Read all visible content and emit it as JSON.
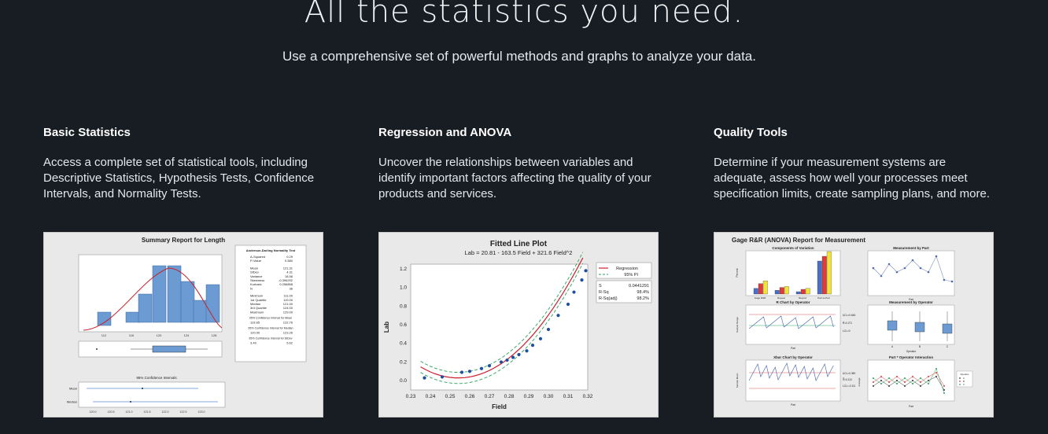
{
  "hero": {
    "title": "All the statistics you need.",
    "subtitle": "Use a comprehensive set of powerful methods and graphs to analyze your data."
  },
  "features": [
    {
      "title": "Basic Statistics",
      "description": "Access a complete set of statistical tools, including Descriptive Statistics, Hypothesis Tests, Confidence Intervals, and Normality Tests."
    },
    {
      "title": "Regression and ANOVA",
      "description": "Uncover the relationships between variables and identify important factors affecting the quality of your products and services."
    },
    {
      "title": "Quality Tools",
      "description": "Determine if your measurement systems are adequate, assess how well your processes meet specification limits, create sampling plans, and more."
    }
  ],
  "summary_report": {
    "title": "Summary Report for Length",
    "stats_title": "Anderson-Darling Normality Test",
    "stats": [
      [
        "A-Squared",
        "0.29"
      ],
      [
        "P-Value",
        "0.580"
      ],
      [
        "Mean",
        "121.31"
      ],
      [
        "StDev",
        "4.31"
      ],
      [
        "Variance",
        "18.56"
      ],
      [
        "Skewness",
        "-0.396292"
      ],
      [
        "Kurtosis",
        "0.256858"
      ],
      [
        "N",
        "36"
      ],
      [
        "Minimum",
        "111.00"
      ],
      [
        "1st Quartile",
        "119.00"
      ],
      [
        "Median",
        "121.00"
      ],
      [
        "3rd Quartile",
        "124.00"
      ],
      [
        "Maximum",
        "129.00"
      ]
    ],
    "ci_mean_label": "95% Confidence Interval for Mean",
    "ci_mean": [
      "119.85",
      "122.76"
    ],
    "ci_median_label": "95% Confidence Interval for Median",
    "ci_median": [
      "120.00",
      "123.26"
    ],
    "ci_stdev_label": "95% Confidence Interval for StDev",
    "ci_stdev": [
      "3.49",
      "5.62"
    ],
    "hist_ticks": [
      "112",
      "116",
      "120",
      "124",
      "128"
    ],
    "ci_chart_title": "95% Confidence Intervals",
    "ci_rows": [
      "Mean",
      "Median"
    ],
    "ci_ticks": [
      "120.0",
      "120.5",
      "121.0",
      "121.5",
      "122.0",
      "122.5",
      "123.0"
    ]
  },
  "chart_data": {
    "type": "scatter",
    "title": "Fitted Line Plot",
    "subtitle": "Lab = 20.81 - 163.5 Field + 321.6 Field^2",
    "xlabel": "Field",
    "ylabel": "Lab",
    "xlim": [
      0.23,
      0.32
    ],
    "ylim": [
      -0.1,
      1.25
    ],
    "x_ticks": [
      "0.23",
      "0.24",
      "0.25",
      "0.26",
      "0.27",
      "0.28",
      "0.29",
      "0.30",
      "0.31",
      "0.32"
    ],
    "y_ticks": [
      "0.0",
      "0.2",
      "0.4",
      "0.6",
      "0.8",
      "1.0",
      "1.2"
    ],
    "fit": {
      "a": 20.81,
      "b": -163.5,
      "c": 321.6
    },
    "pi_half_width": 0.06,
    "points": [
      [
        0.237,
        0.03
      ],
      [
        0.246,
        0.04
      ],
      [
        0.256,
        0.09
      ],
      [
        0.26,
        0.1
      ],
      [
        0.266,
        0.13
      ],
      [
        0.27,
        0.16
      ],
      [
        0.276,
        0.2
      ],
      [
        0.279,
        0.22
      ],
      [
        0.282,
        0.25
      ],
      [
        0.285,
        0.28
      ],
      [
        0.289,
        0.32
      ],
      [
        0.292,
        0.38
      ],
      [
        0.296,
        0.45
      ],
      [
        0.3,
        0.55
      ],
      [
        0.305,
        0.7
      ],
      [
        0.31,
        0.82
      ],
      [
        0.313,
        0.95
      ],
      [
        0.317,
        1.08
      ],
      [
        0.319,
        1.18
      ]
    ],
    "legend": [
      "Regression",
      "95% PI"
    ],
    "stats": [
      [
        "S",
        "0.0441291"
      ],
      [
        "R-Sq",
        "98.4%"
      ],
      [
        "R-Sq(adj)",
        "98.2%"
      ]
    ],
    "colors": {
      "fit": "#cc1f2e",
      "pi": "#2aa35a",
      "points": "#1f4fa0"
    }
  },
  "gage_report": {
    "title": "Gage R&R (ANOVA) Report for Measurement",
    "panels": [
      "Components of Variation",
      "Measurement by Part",
      "R Chart by Operator",
      "Measurement by Operator",
      "Xbar Chart by Operator",
      "Part * Operator Interaction"
    ],
    "components": [
      "Gage R&R",
      "Repeat",
      "Reprod",
      "Part-to-Part"
    ],
    "axis_labels": {
      "percent": "Percent",
      "part": "Part",
      "operator": "Operator",
      "sample_range": "Sample Range",
      "sample_mean": "Sample Mean",
      "average": "Average"
    },
    "operators": [
      "A",
      "B",
      "C"
    ],
    "r_limits": [
      "UCL=0.646",
      "R̄=0.271",
      "LCL=0"
    ],
    "xbar_limits": [
      "UCL=0.380",
      "X̿=0.110",
      "LCL=-0.111"
    ],
    "legend_title": "Operator"
  }
}
